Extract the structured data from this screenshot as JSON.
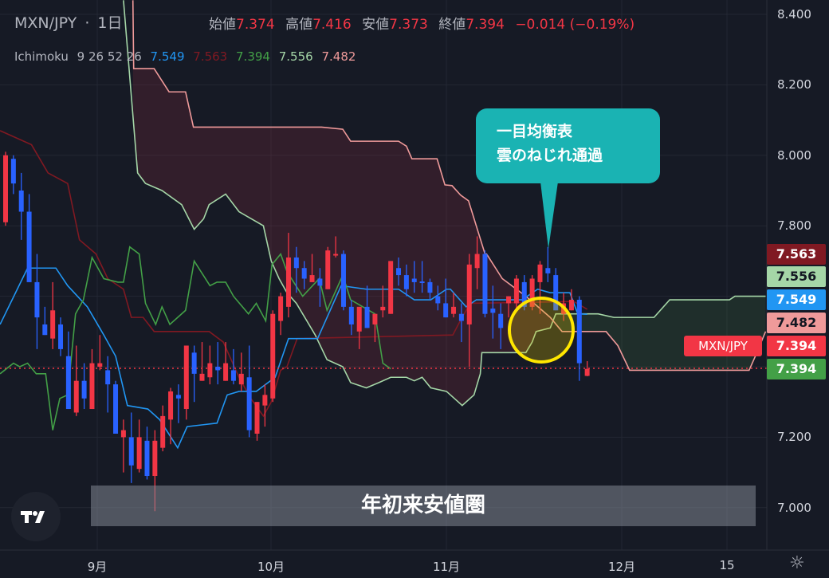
{
  "header": {
    "symbol": "MXN/JPY",
    "interval": "1日"
  },
  "ohlc": {
    "open_label": "始値",
    "open": "7.374",
    "high_label": "高値",
    "high": "7.416",
    "low_label": "安値",
    "low": "7.373",
    "close_label": "終値",
    "close": "7.394",
    "change": "−0.014 (−0.19%)"
  },
  "indicator": {
    "name": "Ichimoku",
    "params": "9 26 52 26",
    "values": [
      "7.549",
      "7.563",
      "7.394",
      "7.556",
      "7.482"
    ]
  },
  "colors": {
    "up": "#f23645",
    "down": "#2962ff",
    "tenkan": "#2196f3",
    "kijun": "#801922",
    "chikou": "#43a047",
    "senkou_a": "#a5d6a7",
    "senkou_b": "#ef9a9a",
    "callout": "#1ab3b3",
    "highlight": "#ffe600"
  },
  "price_tags": [
    {
      "value": "7.563",
      "bg": "#801922",
      "fg": "#ffffff"
    },
    {
      "value": "7.556",
      "bg": "#a5d6a7",
      "fg": "#131722"
    },
    {
      "value": "7.549",
      "bg": "#2196f3",
      "fg": "#ffffff"
    },
    {
      "value": "7.482",
      "bg": "#ef9a9a",
      "fg": "#131722"
    },
    {
      "value": "7.394",
      "bg": "#f23645",
      "fg": "#ffffff"
    },
    {
      "value": "7.394",
      "bg": "#43a047",
      "fg": "#ffffff"
    }
  ],
  "symbol_tag": "MXN/JPY",
  "callout": {
    "line1": "一目均衡表",
    "line2": "雲のねじれ通過"
  },
  "band_label": "年初来安値圏",
  "logo": "TV",
  "chart_data": {
    "type": "candlestick",
    "ylim": [
      6.95,
      8.44
    ],
    "yticks": [
      "8.400",
      "8.200",
      "8.000",
      "7.800",
      "7.200",
      "7.000"
    ],
    "xticks": [
      "9月",
      "10月",
      "11月",
      "12月",
      "15"
    ],
    "last_price": 7.394,
    "candles_ohlc": [
      [
        7.81,
        8.01,
        7.8,
        8.0
      ],
      [
        7.99,
        8.0,
        7.89,
        7.92
      ],
      [
        7.9,
        7.95,
        7.76,
        7.84
      ],
      [
        7.84,
        7.89,
        7.64,
        7.64
      ],
      [
        7.64,
        7.72,
        7.45,
        7.54
      ],
      [
        7.52,
        7.57,
        7.49,
        7.49
      ],
      [
        7.48,
        7.64,
        7.45,
        7.56
      ],
      [
        7.52,
        7.54,
        7.43,
        7.45
      ],
      [
        7.43,
        7.5,
        7.28,
        7.28
      ],
      [
        7.27,
        7.46,
        7.26,
        7.36
      ],
      [
        7.36,
        7.41,
        7.28,
        7.31
      ],
      [
        7.28,
        7.45,
        7.28,
        7.41
      ],
      [
        7.4,
        7.49,
        7.39,
        7.41
      ],
      [
        7.39,
        7.43,
        7.27,
        7.35
      ],
      [
        7.35,
        7.36,
        7.21,
        7.21
      ],
      [
        7.2,
        7.25,
        7.1,
        7.22
      ],
      [
        7.2,
        7.27,
        7.07,
        7.12
      ],
      [
        7.11,
        7.25,
        7.1,
        7.2
      ],
      [
        7.19,
        7.23,
        7.08,
        7.09
      ],
      [
        7.09,
        7.22,
        6.99,
        7.19
      ],
      [
        7.17,
        7.29,
        7.16,
        7.26
      ],
      [
        7.25,
        7.34,
        7.18,
        7.33
      ],
      [
        7.32,
        7.35,
        7.24,
        7.31
      ],
      [
        7.28,
        7.46,
        7.25,
        7.46
      ],
      [
        7.44,
        7.46,
        7.3,
        7.38
      ],
      [
        7.36,
        7.47,
        7.36,
        7.38
      ],
      [
        7.37,
        7.46,
        7.35,
        7.41
      ],
      [
        7.4,
        7.47,
        7.35,
        7.39
      ],
      [
        7.36,
        7.47,
        7.36,
        7.41
      ],
      [
        7.39,
        7.45,
        7.35,
        7.36
      ],
      [
        7.35,
        7.44,
        7.33,
        7.38
      ],
      [
        7.37,
        7.46,
        7.2,
        7.22
      ],
      [
        7.21,
        7.3,
        7.19,
        7.3
      ],
      [
        7.29,
        7.35,
        7.23,
        7.32
      ],
      [
        7.31,
        7.56,
        7.3,
        7.55
      ],
      [
        7.53,
        7.61,
        7.49,
        7.6
      ],
      [
        7.57,
        7.78,
        7.54,
        7.71
      ],
      [
        7.71,
        7.74,
        7.61,
        7.68
      ],
      [
        7.68,
        7.7,
        7.62,
        7.65
      ],
      [
        7.64,
        7.72,
        7.64,
        7.66
      ],
      [
        7.65,
        7.68,
        7.57,
        7.63
      ],
      [
        7.62,
        7.74,
        7.62,
        7.73
      ],
      [
        7.717,
        7.77,
        7.71,
        7.72
      ],
      [
        7.72,
        7.73,
        7.56,
        7.57
      ],
      [
        7.57,
        7.59,
        7.49,
        7.52
      ],
      [
        7.5,
        7.57,
        7.45,
        7.57
      ],
      [
        7.57,
        7.63,
        7.51,
        7.51
      ],
      [
        7.52,
        7.55,
        7.47,
        7.55
      ],
      [
        7.56,
        7.63,
        7.54,
        7.57
      ],
      [
        7.55,
        7.7,
        7.55,
        7.7
      ],
      [
        7.68,
        7.71,
        7.63,
        7.66
      ],
      [
        7.66,
        7.69,
        7.6,
        7.62
      ],
      [
        7.65,
        7.7,
        7.61,
        7.64
      ],
      [
        7.642,
        7.7,
        7.61,
        7.639
      ],
      [
        7.64,
        7.65,
        7.59,
        7.61
      ],
      [
        7.6,
        7.63,
        7.56,
        7.58
      ],
      [
        7.58,
        7.65,
        7.54,
        7.54
      ],
      [
        7.55,
        7.61,
        7.54,
        7.57
      ],
      [
        7.55,
        7.58,
        7.47,
        7.53
      ],
      [
        7.52,
        7.72,
        7.4,
        7.69
      ],
      [
        7.68,
        7.77,
        7.62,
        7.72
      ],
      [
        7.72,
        7.73,
        7.54,
        7.55
      ],
      [
        7.565,
        7.63,
        7.48,
        7.553
      ],
      [
        7.55,
        7.58,
        7.45,
        7.51
      ],
      [
        7.58,
        7.6,
        7.54,
        7.6
      ],
      [
        7.58,
        7.66,
        7.56,
        7.65
      ],
      [
        7.64,
        7.66,
        7.56,
        7.57
      ],
      [
        7.57,
        7.66,
        7.56,
        7.65
      ],
      [
        7.64,
        7.7,
        7.55,
        7.69
      ],
      [
        7.68,
        7.74,
        7.64,
        7.665
      ],
      [
        7.66,
        7.68,
        7.56,
        7.56
      ],
      [
        7.55,
        7.61,
        7.53,
        7.58
      ],
      [
        7.56,
        7.62,
        7.56,
        7.59
      ],
      [
        7.59,
        7.6,
        7.36,
        7.41
      ],
      [
        7.374,
        7.416,
        7.373,
        7.394
      ]
    ],
    "ichimoku": {
      "tenkan": [
        [
          -0.7,
          7.52
        ],
        [
          2.8,
          7.68
        ],
        [
          6.4,
          7.68
        ],
        [
          7.9,
          7.63
        ],
        [
          10.4,
          7.57
        ],
        [
          12.5,
          7.49
        ],
        [
          14.0,
          7.43
        ],
        [
          15.5,
          7.29
        ],
        [
          18.1,
          7.28
        ],
        [
          19.6,
          7.25
        ],
        [
          21.9,
          7.17
        ],
        [
          23.1,
          7.23
        ],
        [
          26.9,
          7.24
        ],
        [
          28.2,
          7.32
        ],
        [
          29.7,
          7.33
        ],
        [
          31.9,
          7.33
        ],
        [
          34.3,
          7.37
        ],
        [
          36.0,
          7.48
        ],
        [
          39.7,
          7.48
        ],
        [
          42.7,
          7.63
        ],
        [
          45.9,
          7.62
        ],
        [
          50.0,
          7.62
        ],
        [
          52.0,
          7.59
        ],
        [
          54.1,
          7.59
        ],
        [
          56.1,
          7.62
        ],
        [
          56.6,
          7.62
        ],
        [
          58.6,
          7.57
        ],
        [
          59.9,
          7.59
        ],
        [
          65.7,
          7.59
        ],
        [
          67.7,
          7.62
        ],
        [
          69.3,
          7.61
        ],
        [
          71.8,
          7.61
        ],
        [
          72.8,
          7.55
        ],
        [
          74,
          7.549
        ]
      ],
      "kijun": [
        [
          -0.7,
          8.07
        ],
        [
          3.3,
          8.03
        ],
        [
          5.4,
          7.95
        ],
        [
          7.9,
          7.92
        ],
        [
          9.4,
          7.76
        ],
        [
          11.5,
          7.72
        ],
        [
          13.0,
          7.65
        ],
        [
          15.0,
          7.62
        ],
        [
          16.0,
          7.54
        ],
        [
          17.5,
          7.54
        ],
        [
          18.9,
          7.5
        ],
        [
          25.9,
          7.5
        ],
        [
          27.7,
          7.47
        ],
        [
          29.7,
          7.37
        ],
        [
          31.2,
          7.31
        ],
        [
          32.8,
          7.26
        ],
        [
          33.8,
          7.3
        ],
        [
          35.0,
          7.39
        ],
        [
          35.8,
          7.4
        ],
        [
          37.1,
          7.48
        ],
        [
          56.9,
          7.49
        ],
        [
          57.6,
          7.52
        ],
        [
          59.1,
          7.58
        ],
        [
          72.3,
          7.585
        ],
        [
          74,
          7.563
        ]
      ],
      "chikou": [
        [
          -0.7,
          7.38
        ],
        [
          1.0,
          7.41
        ],
        [
          1.8,
          7.4
        ],
        [
          2.8,
          7.41
        ],
        [
          3.9,
          7.38
        ],
        [
          5.1,
          7.38
        ],
        [
          6.0,
          7.22
        ],
        [
          6.9,
          7.31
        ],
        [
          7.9,
          7.32
        ],
        [
          8.9,
          7.55
        ],
        [
          9.9,
          7.59
        ],
        [
          11.0,
          7.71
        ],
        [
          12.5,
          7.65
        ],
        [
          14.3,
          7.64
        ],
        [
          15.0,
          7.64
        ],
        [
          15.8,
          7.74
        ],
        [
          17.0,
          7.72
        ],
        [
          17.8,
          7.58
        ],
        [
          19.1,
          7.52
        ],
        [
          19.9,
          7.57
        ],
        [
          20.9,
          7.52
        ],
        [
          22.9,
          7.56
        ],
        [
          24.0,
          7.7
        ],
        [
          26.0,
          7.63
        ],
        [
          26.9,
          7.64
        ],
        [
          28.0,
          7.64
        ],
        [
          29.0,
          7.6
        ],
        [
          30.9,
          7.55
        ],
        [
          31.9,
          7.58
        ],
        [
          33.1,
          7.53
        ],
        [
          33.9,
          7.69
        ],
        [
          35.0,
          7.72
        ],
        [
          35.8,
          7.67
        ],
        [
          37.8,
          7.6
        ],
        [
          39.9,
          7.65
        ],
        [
          40.9,
          7.56
        ],
        [
          42.9,
          7.66
        ],
        [
          43.9,
          7.59
        ],
        [
          47.0,
          7.55
        ],
        [
          48.0,
          7.41
        ],
        [
          49.0,
          7.394
        ]
      ],
      "senkou_a": [
        [
          15.0,
          8.44
        ],
        [
          16.8,
          7.95
        ],
        [
          17.8,
          7.92
        ],
        [
          19.9,
          7.9
        ],
        [
          22.4,
          7.86
        ],
        [
          24.0,
          7.79
        ],
        [
          25.2,
          7.82
        ],
        [
          25.9,
          7.86
        ],
        [
          28.0,
          7.89
        ],
        [
          29.7,
          7.84
        ],
        [
          32.8,
          7.8
        ],
        [
          33.8,
          7.7
        ],
        [
          34.8,
          7.65
        ],
        [
          35.8,
          7.61
        ],
        [
          37.0,
          7.58
        ],
        [
          39.4,
          7.49
        ],
        [
          40.9,
          7.42
        ],
        [
          42.9,
          7.4
        ],
        [
          43.9,
          7.355
        ],
        [
          45.9,
          7.34
        ],
        [
          47.5,
          7.355
        ],
        [
          49.0,
          7.37
        ],
        [
          51.0,
          7.37
        ],
        [
          52.0,
          7.36
        ],
        [
          53.0,
          7.37
        ],
        [
          54.1,
          7.34
        ],
        [
          56.1,
          7.33
        ],
        [
          57.6,
          7.3
        ],
        [
          58.1,
          7.29
        ],
        [
          59.6,
          7.32
        ],
        [
          60.4,
          7.38
        ],
        [
          60.6,
          7.44
        ],
        [
          66.2,
          7.44
        ],
        [
          67.0,
          7.47
        ],
        [
          67.5,
          7.5
        ],
        [
          69.3,
          7.51
        ],
        [
          70.0,
          7.55
        ],
        [
          75.4,
          7.55
        ],
        [
          77.4,
          7.54
        ],
        [
          82.5,
          7.54
        ],
        [
          84.5,
          7.59
        ],
        [
          92.1,
          7.59
        ],
        [
          92.8,
          7.6
        ],
        [
          96.7,
          7.6
        ]
      ],
      "senkou_b": [
        [
          16.2,
          8.44
        ],
        [
          16.3,
          8.246
        ],
        [
          18.9,
          8.246
        ],
        [
          20.8,
          8.18
        ],
        [
          22.9,
          8.18
        ],
        [
          23.9,
          8.08
        ],
        [
          40.2,
          8.08
        ],
        [
          42.9,
          8.074
        ],
        [
          43.9,
          8.04
        ],
        [
          50.0,
          8.04
        ],
        [
          51.0,
          8.026
        ],
        [
          51.7,
          7.99
        ],
        [
          54.9,
          7.99
        ],
        [
          55.9,
          7.916
        ],
        [
          56.8,
          7.914
        ],
        [
          57.9,
          7.887
        ],
        [
          58.9,
          7.871
        ],
        [
          61.0,
          7.72
        ],
        [
          61.2,
          7.72
        ],
        [
          63.2,
          7.65
        ],
        [
          66.2,
          7.6
        ],
        [
          69.3,
          7.54
        ],
        [
          70.8,
          7.5
        ],
        [
          76.4,
          7.5
        ],
        [
          77.9,
          7.46
        ],
        [
          79.4,
          7.39
        ],
        [
          94.6,
          7.39
        ],
        [
          95.4,
          7.43
        ],
        [
          96.7,
          7.5
        ]
      ]
    }
  }
}
